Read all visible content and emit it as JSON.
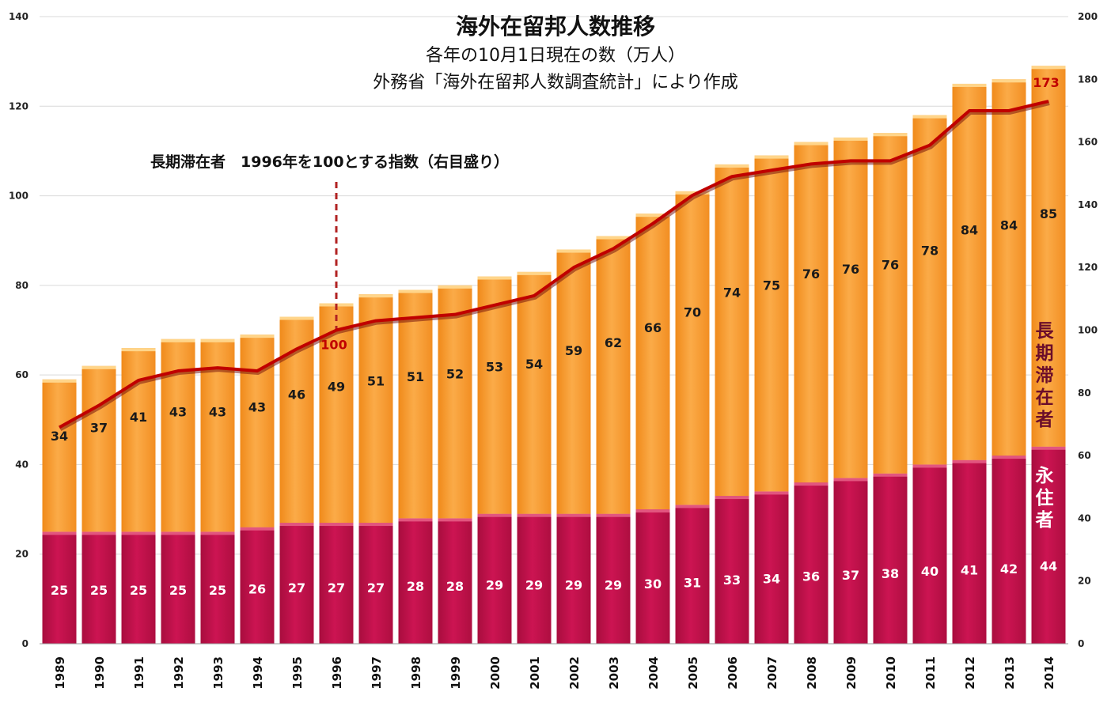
{
  "chart_data": {
    "type": "bar",
    "stacked": true,
    "title": "海外在留邦人数推移",
    "subtitle": "各年の10月1日現在の数（万人）",
    "source": "外務省「海外在留邦人数調査統計」により作成",
    "annotation": "長期滞在者　1996年を100とする指数（右目盛り）",
    "categories": [
      "1989",
      "1990",
      "1991",
      "1992",
      "1993",
      "1994",
      "1995",
      "1996",
      "1997",
      "1998",
      "1999",
      "2000",
      "2001",
      "2002",
      "2003",
      "2004",
      "2005",
      "2006",
      "2007",
      "2008",
      "2009",
      "2010",
      "2011",
      "2012",
      "2013",
      "2014"
    ],
    "series": [
      {
        "name": "永住者",
        "color": "#c0114b",
        "values": [
          25,
          25,
          25,
          25,
          25,
          26,
          27,
          27,
          27,
          28,
          28,
          29,
          29,
          29,
          29,
          30,
          31,
          33,
          34,
          36,
          37,
          38,
          40,
          41,
          42,
          44
        ]
      },
      {
        "name": "長期滞在者",
        "color": "#f7a23a",
        "values": [
          34,
          37,
          41,
          43,
          43,
          43,
          46,
          49,
          51,
          51,
          52,
          53,
          54,
          59,
          62,
          66,
          70,
          74,
          75,
          76,
          76,
          76,
          78,
          84,
          84,
          85
        ]
      }
    ],
    "line_series": {
      "name": "長期滞在者　1996年を100とする指数",
      "axis": "right",
      "color": "#c00000",
      "values": [
        69,
        76,
        84,
        87,
        88,
        87,
        94,
        100,
        103,
        104,
        105,
        108,
        111,
        120,
        126,
        134,
        143,
        149,
        151,
        153,
        154,
        154,
        159,
        170,
        170,
        173
      ],
      "labeled_points": [
        {
          "category": "1996",
          "label": "100"
        },
        {
          "category": "2014",
          "label": "173"
        }
      ]
    },
    "y_left": {
      "min": 0,
      "max": 140,
      "ticks": [
        "0",
        "20",
        "40",
        "60",
        "80",
        "100",
        "120",
        "140"
      ]
    },
    "y_right": {
      "min": 0,
      "max": 200,
      "ticks": [
        "0",
        "20",
        "40",
        "60",
        "80",
        "100",
        "120",
        "140",
        "160",
        "180",
        "200"
      ]
    },
    "marker_line": {
      "category": "1996",
      "style": "dashed",
      "color": "#b22222"
    },
    "series_labels": {
      "long_term": "長期滞在者",
      "permanent": "永住者"
    },
    "grid": "horizontal"
  }
}
